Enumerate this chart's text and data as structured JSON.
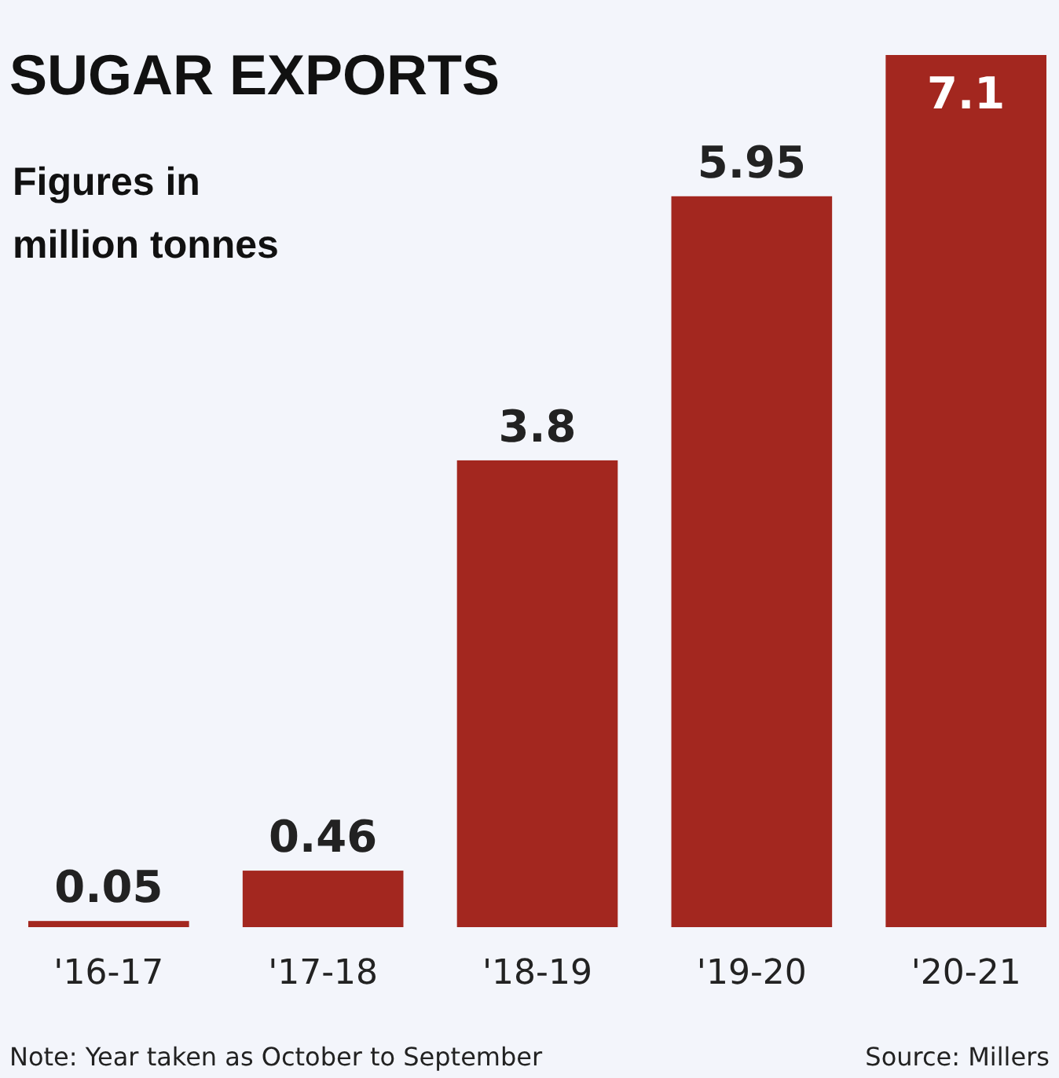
{
  "chart_data": {
    "type": "bar",
    "title": "SUGAR EXPORTS",
    "subtitle": "Figures in million tonnes",
    "categories": [
      "'16-17",
      "'17-18",
      "'18-19",
      "'19-20",
      "'20-21"
    ],
    "values": [
      0.05,
      0.46,
      3.8,
      5.95,
      7.1
    ],
    "color": "#a3271f",
    "data_labels": true,
    "annotations": [
      "Note: Year taken as October to September",
      "Source: Millers"
    ]
  }
}
